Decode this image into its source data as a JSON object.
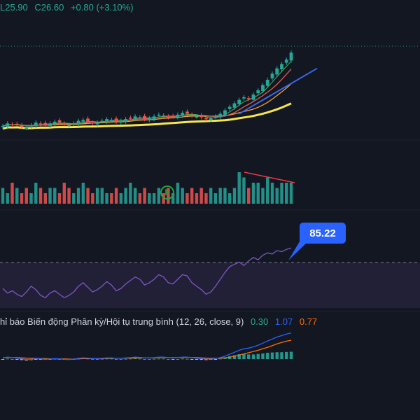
{
  "ohlc_legend": {
    "low_label": "L25.90",
    "close_label": "C26.60",
    "change_label": "+0.80 (+3.10%)"
  },
  "rsi": {
    "last_value_label": "85.22"
  },
  "macd": {
    "title": "hỉ báo Biến động Phân kỳ/Hội tụ trung bình (12, 26, close, 9)",
    "histogram_value": "0.30",
    "macd_value": "1.07",
    "signal_value": "0.77"
  },
  "event_marker": {
    "label": "F"
  },
  "colors": {
    "background": "#131722",
    "up": "#26a69a",
    "down": "#ef5350",
    "rsi_line": "#7e57c2",
    "rsi_band": "#2a2540",
    "macd_line": "#2962ff",
    "signal_line": "#ff6d00",
    "ma_slow": "#f7e64b",
    "ma_mid": "#f0a23a",
    "ma_fast": "#e05a5a",
    "trend_line": "#3a66e8"
  },
  "chart_data": [
    {
      "type": "candlestick",
      "title": "",
      "series": [
        {
          "name": "",
          "values": [
            18.2,
            18.5,
            18.3,
            18.4,
            18.1,
            18.0,
            18.3,
            18.6,
            18.4,
            18.3,
            18.5,
            18.7,
            18.6,
            18.4,
            18.3,
            18.5,
            18.8,
            18.9,
            18.7,
            18.5,
            18.6,
            18.8,
            19.0,
            18.9,
            18.7,
            18.8,
            19.0,
            19.1,
            19.3,
            19.2,
            19.0,
            19.1,
            19.3,
            19.5,
            19.4,
            19.2,
            19.3,
            19.5,
            19.7,
            19.6,
            19.4,
            19.3,
            19.2,
            19.0,
            19.1,
            19.3,
            19.6,
            20.0,
            20.4,
            20.8,
            21.2,
            21.5,
            21.3,
            21.8,
            22.3,
            22.9,
            23.5,
            24.2,
            24.8,
            25.3,
            25.8,
            26.6
          ]
        }
      ]
    },
    {
      "type": "bar",
      "title": "",
      "series": [
        {
          "name": "",
          "values": [
            3,
            2,
            4,
            3,
            2,
            3,
            2,
            4,
            3,
            2,
            3,
            3,
            2,
            4,
            3,
            2,
            3,
            4,
            3,
            2,
            3,
            3,
            2,
            2,
            3,
            2,
            3,
            4,
            3,
            2,
            3,
            2,
            2,
            3,
            2,
            3,
            2,
            4,
            3,
            2,
            3,
            2,
            3,
            2,
            3,
            2,
            3,
            3,
            2,
            3,
            6,
            5,
            3,
            4,
            4,
            3,
            5,
            4,
            3,
            4,
            4,
            4
          ]
        }
      ]
    },
    {
      "type": "line",
      "title": "",
      "series": [
        {
          "name": "",
          "values": [
            50,
            46,
            48,
            45,
            43,
            47,
            52,
            49,
            44,
            42,
            46,
            48,
            45,
            42,
            44,
            47,
            52,
            55,
            51,
            47,
            49,
            52,
            56,
            53,
            48,
            50,
            54,
            57,
            60,
            58,
            53,
            55,
            58,
            62,
            60,
            55,
            54,
            58,
            62,
            61,
            55,
            52,
            49,
            45,
            47,
            52,
            58,
            64,
            69,
            71,
            73,
            70,
            74,
            77,
            75,
            79,
            81,
            80,
            83,
            82,
            84,
            85.22
          ]
        }
      ],
      "ylim": [
        30,
        100
      ]
    },
    {
      "type": "line",
      "title": "",
      "series": [
        {
          "name": "",
          "values": [
            0.05,
            0.08,
            0.06,
            0.04,
            0.01,
            -0.02,
            -0.01,
            0.02,
            0.01,
            -0.01,
            0.0,
            0.02,
            0.01,
            -0.01,
            -0.02,
            0.0,
            0.03,
            0.05,
            0.04,
            0.02,
            0.02,
            0.03,
            0.05,
            0.05,
            0.03,
            0.03,
            0.05,
            0.06,
            0.08,
            0.07,
            0.05,
            0.05,
            0.06,
            0.08,
            0.08,
            0.06,
            0.05,
            0.06,
            0.08,
            0.08,
            0.06,
            0.04,
            0.02,
            0.0,
            0.0,
            0.02,
            0.06,
            0.12,
            0.2,
            0.28,
            0.36,
            0.42,
            0.45,
            0.5,
            0.57,
            0.65,
            0.74,
            0.82,
            0.9,
            0.96,
            1.02,
            1.07
          ]
        },
        {
          "name": "",
          "values": [
            0.06,
            0.06,
            0.06,
            0.06,
            0.05,
            0.04,
            0.03,
            0.03,
            0.02,
            0.02,
            0.01,
            0.01,
            0.01,
            0.01,
            0.0,
            0.0,
            0.01,
            0.02,
            0.02,
            0.02,
            0.02,
            0.02,
            0.03,
            0.03,
            0.03,
            0.03,
            0.04,
            0.04,
            0.05,
            0.05,
            0.05,
            0.05,
            0.05,
            0.06,
            0.06,
            0.06,
            0.06,
            0.06,
            0.06,
            0.07,
            0.07,
            0.06,
            0.05,
            0.04,
            0.03,
            0.03,
            0.04,
            0.05,
            0.08,
            0.12,
            0.16,
            0.21,
            0.26,
            0.31,
            0.36,
            0.42,
            0.48,
            0.55,
            0.62,
            0.68,
            0.73,
            0.77
          ]
        }
      ]
    }
  ]
}
